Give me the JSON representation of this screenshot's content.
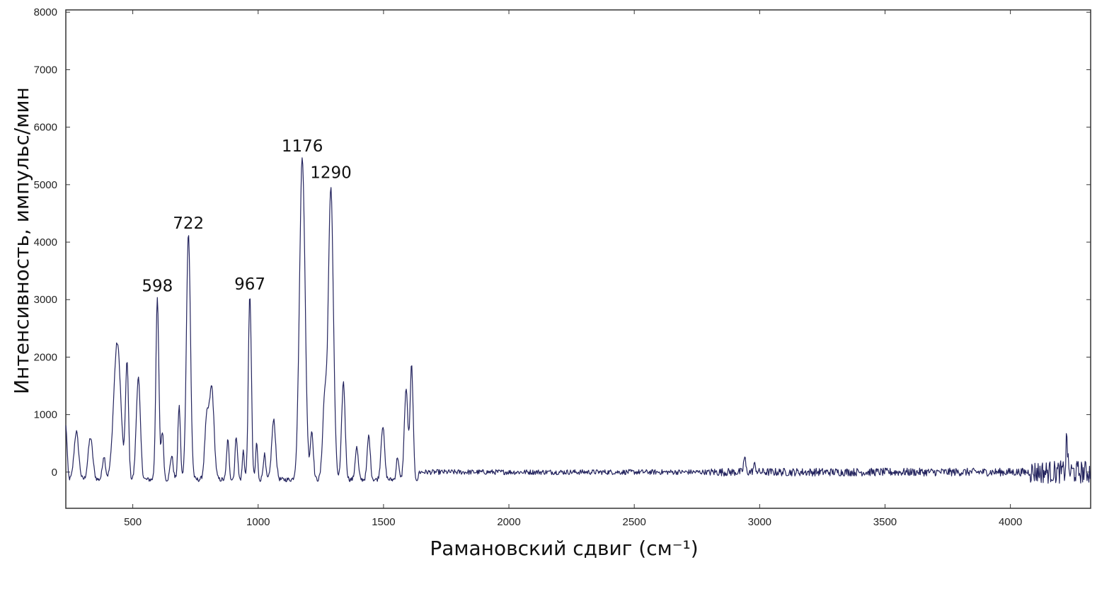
{
  "chart_data": {
    "type": "line",
    "title": "",
    "xlabel": "Рамановский сдвиг (см⁻¹)",
    "ylabel": "Интенсивность, импульс/мин",
    "xlim": [
      233,
      4320
    ],
    "ylim": [
      -630,
      8040
    ],
    "xticks": [
      500,
      1000,
      1500,
      2000,
      2500,
      3000,
      3500,
      4000
    ],
    "yticks": [
      0,
      1000,
      2000,
      3000,
      4000,
      5000,
      6000,
      7000,
      8000
    ],
    "grid": false,
    "line_color": "#24245e",
    "peaks": [
      {
        "x": 233,
        "y": 800,
        "w": 5
      },
      {
        "x": 275,
        "y": 700,
        "w": 9
      },
      {
        "x": 331,
        "y": 600,
        "w": 9
      },
      {
        "x": 385,
        "y": 280,
        "w": 6
      },
      {
        "x": 438,
        "y": 2250,
        "w": 14
      },
      {
        "x": 477,
        "y": 1880,
        "w": 6
      },
      {
        "x": 522,
        "y": 1650,
        "w": 8
      },
      {
        "x": 598,
        "y": 3000,
        "w": 6
      },
      {
        "x": 618,
        "y": 700,
        "w": 5
      },
      {
        "x": 655,
        "y": 280,
        "w": 6
      },
      {
        "x": 685,
        "y": 1150,
        "w": 5
      },
      {
        "x": 722,
        "y": 4150,
        "w": 8
      },
      {
        "x": 795,
        "y": 900,
        "w": 8
      },
      {
        "x": 815,
        "y": 1450,
        "w": 9
      },
      {
        "x": 879,
        "y": 550,
        "w": 5
      },
      {
        "x": 913,
        "y": 620,
        "w": 5
      },
      {
        "x": 941,
        "y": 380,
        "w": 4
      },
      {
        "x": 967,
        "y": 3080,
        "w": 6
      },
      {
        "x": 994,
        "y": 520,
        "w": 4
      },
      {
        "x": 1025,
        "y": 300,
        "w": 5
      },
      {
        "x": 1062,
        "y": 900,
        "w": 8
      },
      {
        "x": 1176,
        "y": 5480,
        "w": 11
      },
      {
        "x": 1214,
        "y": 700,
        "w": 6
      },
      {
        "x": 1265,
        "y": 1200,
        "w": 8
      },
      {
        "x": 1290,
        "y": 4950,
        "w": 10
      },
      {
        "x": 1340,
        "y": 1560,
        "w": 7
      },
      {
        "x": 1393,
        "y": 430,
        "w": 6
      },
      {
        "x": 1441,
        "y": 630,
        "w": 6
      },
      {
        "x": 1497,
        "y": 800,
        "w": 7
      },
      {
        "x": 1556,
        "y": 270,
        "w": 5
      },
      {
        "x": 1590,
        "y": 1450,
        "w": 7
      },
      {
        "x": 1612,
        "y": 1850,
        "w": 6
      },
      {
        "x": 2940,
        "y": 260,
        "w": 4
      },
      {
        "x": 2980,
        "y": 120,
        "w": 5
      },
      {
        "x": 4225,
        "y": 650,
        "w": 3
      }
    ],
    "baseline": -130,
    "noise": [
      {
        "from": 233,
        "to": 1640,
        "amp": 40
      },
      {
        "from": 1640,
        "to": 2800,
        "amp": 45
      },
      {
        "from": 2800,
        "to": 4080,
        "amp": 70
      },
      {
        "from": 4080,
        "to": 4320,
        "amp": 200
      }
    ],
    "annotations": [
      {
        "x": 598,
        "y": 2950,
        "text": "598"
      },
      {
        "x": 722,
        "y": 4040,
        "text": "722"
      },
      {
        "x": 967,
        "y": 2980,
        "text": "967"
      },
      {
        "x": 1176,
        "y": 5380,
        "text": "1176"
      },
      {
        "x": 1290,
        "y": 4920,
        "text": "1290"
      }
    ]
  }
}
